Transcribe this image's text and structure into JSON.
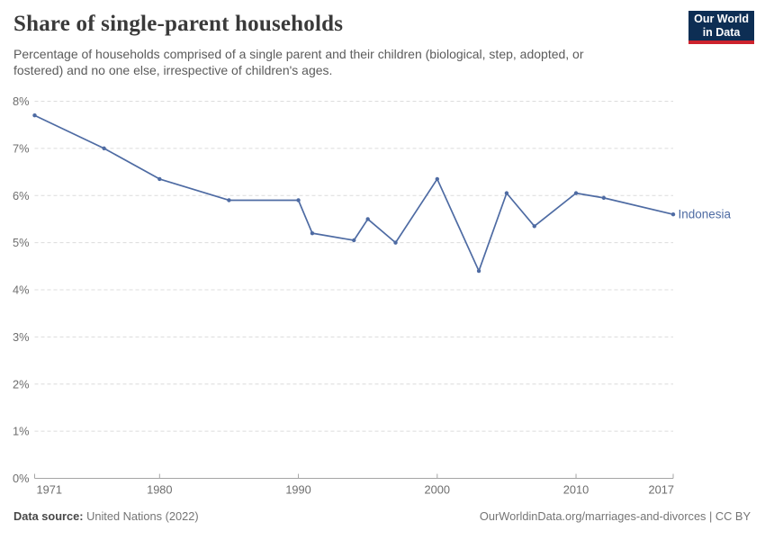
{
  "chart_data": {
    "type": "line",
    "title": "Share of single-parent households",
    "subtitle_line1": "Percentage of households comprised of a single parent and their children (biological, step, adopted, or",
    "subtitle_line2": "fostered) and no one else, irrespective of children's ages.",
    "series": [
      {
        "name": "Indonesia",
        "color": "#4e6ba3",
        "x": [
          1971,
          1976,
          1980,
          1985,
          1990,
          1991,
          1994,
          1995,
          1997,
          2000,
          2003,
          2005,
          2007,
          2010,
          2012,
          2017
        ],
        "values": [
          7.7,
          7.0,
          6.35,
          5.9,
          5.9,
          5.2,
          5.05,
          5.5,
          5.0,
          6.35,
          4.4,
          6.05,
          5.35,
          6.05,
          5.95,
          5.6
        ]
      }
    ],
    "x_ticks": [
      1971,
      1980,
      1990,
      2000,
      2010,
      2017
    ],
    "y_ticks": [
      0,
      1,
      2,
      3,
      4,
      5,
      6,
      7,
      8
    ],
    "y_tick_suffix": "%",
    "xlim": [
      1971,
      2017
    ],
    "ylim": [
      0,
      8
    ],
    "xlabel": "",
    "ylabel": "",
    "grid": "horizontal-dashed",
    "legend": "entity-label-at-line-end",
    "grid_color": "#dcdcdc",
    "axis_color": "#a5a5a5"
  },
  "header": {
    "logo": {
      "line1": "Our World",
      "line2": "in Data",
      "bg_color": "#0d2e54",
      "accent_color": "#cd232d"
    }
  },
  "footer": {
    "data_source_label": "Data source:",
    "data_source_value": "United Nations (2022)",
    "citation": "OurWorldinData.org/marriages-and-divorces | CC BY"
  }
}
